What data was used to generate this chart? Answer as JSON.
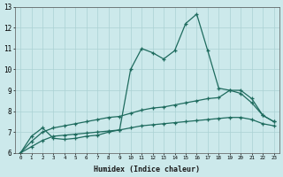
{
  "xlabel": "Humidex (Indice chaleur)",
  "x": [
    0,
    1,
    2,
    3,
    4,
    5,
    6,
    7,
    8,
    9,
    10,
    11,
    12,
    13,
    14,
    15,
    16,
    17,
    18,
    19,
    20,
    21,
    22,
    23
  ],
  "line1": [
    6.0,
    6.8,
    7.2,
    6.7,
    6.65,
    6.7,
    6.8,
    6.85,
    7.0,
    7.1,
    10.0,
    11.0,
    10.8,
    10.5,
    10.9,
    12.2,
    12.65,
    10.9,
    9.1,
    9.0,
    8.85,
    8.4,
    7.8,
    7.5
  ],
  "line2": [
    6.0,
    6.55,
    7.0,
    7.2,
    7.3,
    7.4,
    7.5,
    7.6,
    7.7,
    7.75,
    7.9,
    8.05,
    8.15,
    8.2,
    8.3,
    8.4,
    8.5,
    8.6,
    8.65,
    9.0,
    9.0,
    8.6,
    7.8,
    7.5
  ],
  "line3": [
    6.0,
    6.3,
    6.6,
    6.8,
    6.85,
    6.9,
    6.95,
    7.0,
    7.05,
    7.1,
    7.2,
    7.3,
    7.35,
    7.4,
    7.45,
    7.5,
    7.55,
    7.6,
    7.65,
    7.7,
    7.7,
    7.6,
    7.4,
    7.3
  ],
  "line_color": "#1e6b5e",
  "bg_color": "#cce9eb",
  "grid_color": "#aad1d4",
  "ylim": [
    6,
    13
  ],
  "xlim": [
    0,
    23
  ]
}
